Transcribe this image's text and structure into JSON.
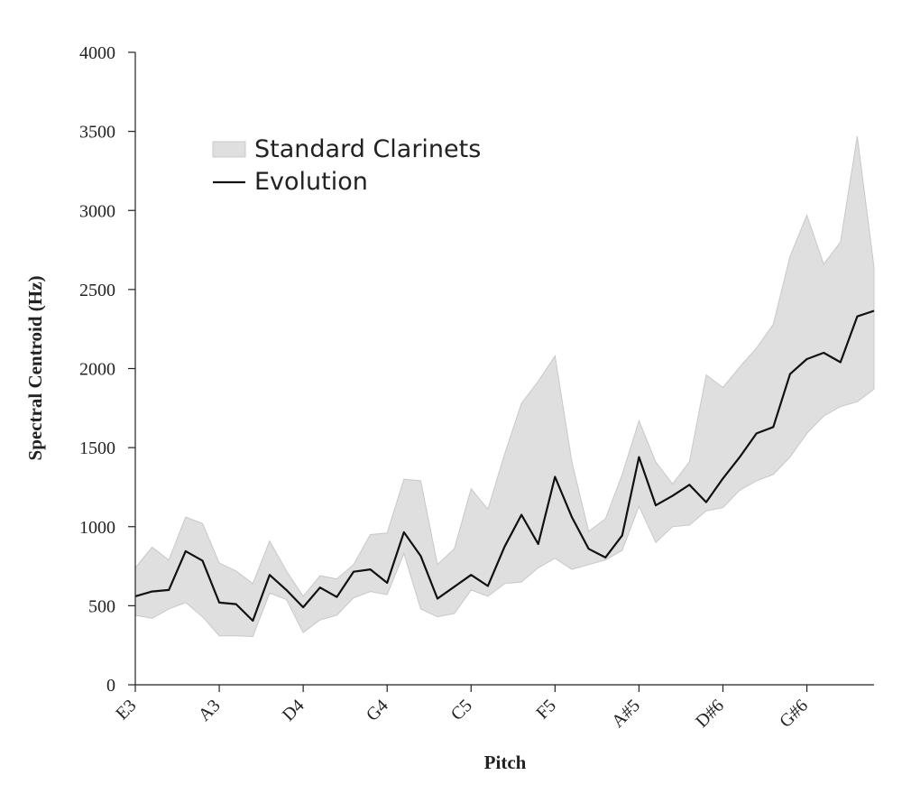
{
  "chart_data": {
    "type": "area",
    "xlabel": "Pitch",
    "ylabel": "Spectral Centroid (Hz)",
    "ylim": [
      0,
      4000
    ],
    "yticks": [
      0,
      500,
      1000,
      1500,
      2000,
      2500,
      3000,
      3500,
      4000
    ],
    "x": [
      "E3",
      "F3",
      "F#3",
      "G3",
      "G#3",
      "A3",
      "A#3",
      "B3",
      "C4",
      "C#4",
      "D4",
      "D#4",
      "E4",
      "F4",
      "F#4",
      "G4",
      "G#4",
      "A4",
      "A#4",
      "B4",
      "C5",
      "C#5",
      "D5",
      "D#5",
      "E5",
      "F5",
      "F#5",
      "G5",
      "G#5",
      "A5",
      "A#5",
      "B5",
      "C6",
      "C#6",
      "D6",
      "D#6",
      "E6",
      "F6",
      "F#6",
      "G6",
      "G#6",
      "A6",
      "A#6",
      "B6",
      "C7"
    ],
    "xtick_labels": [
      "E3",
      "A3",
      "D4",
      "G4",
      "C5",
      "F5",
      "A#5",
      "D#6",
      "G#6"
    ],
    "grid": false,
    "legend_position": "top-left",
    "series": [
      {
        "name": "Standard Clarinets",
        "kind": "band",
        "color": "#e0dfe0",
        "lower": [
          440,
          420,
          480,
          520,
          430,
          310,
          310,
          305,
          580,
          540,
          330,
          410,
          440,
          550,
          590,
          570,
          830,
          480,
          430,
          450,
          600,
          560,
          640,
          650,
          740,
          800,
          730,
          760,
          790,
          850,
          1130,
          900,
          1000,
          1010,
          1100,
          1120,
          1230,
          1290,
          1330,
          1440,
          1590,
          1700,
          1760,
          1790,
          1870
        ],
        "upper": [
          740,
          870,
          790,
          1060,
          1020,
          770,
          720,
          640,
          910,
          720,
          560,
          690,
          670,
          760,
          950,
          960,
          1300,
          1290,
          760,
          860,
          1240,
          1110,
          1460,
          1780,
          1920,
          2080,
          1410,
          970,
          1050,
          1330,
          1670,
          1410,
          1270,
          1410,
          1960,
          1880,
          2010,
          2130,
          2280,
          2710,
          2970,
          2660,
          2800,
          3470,
          2640
        ]
      },
      {
        "name": "Evolution",
        "kind": "line",
        "color": "#111111",
        "values": [
          560,
          590,
          600,
          845,
          785,
          520,
          510,
          405,
          695,
          600,
          490,
          615,
          555,
          715,
          730,
          645,
          965,
          815,
          545,
          620,
          695,
          625,
          875,
          1075,
          890,
          1315,
          1060,
          860,
          805,
          945,
          1440,
          1135,
          1195,
          1265,
          1155,
          1305,
          1440,
          1590,
          1630,
          1965,
          2060,
          2100,
          2040,
          2330,
          2365
        ]
      }
    ]
  }
}
